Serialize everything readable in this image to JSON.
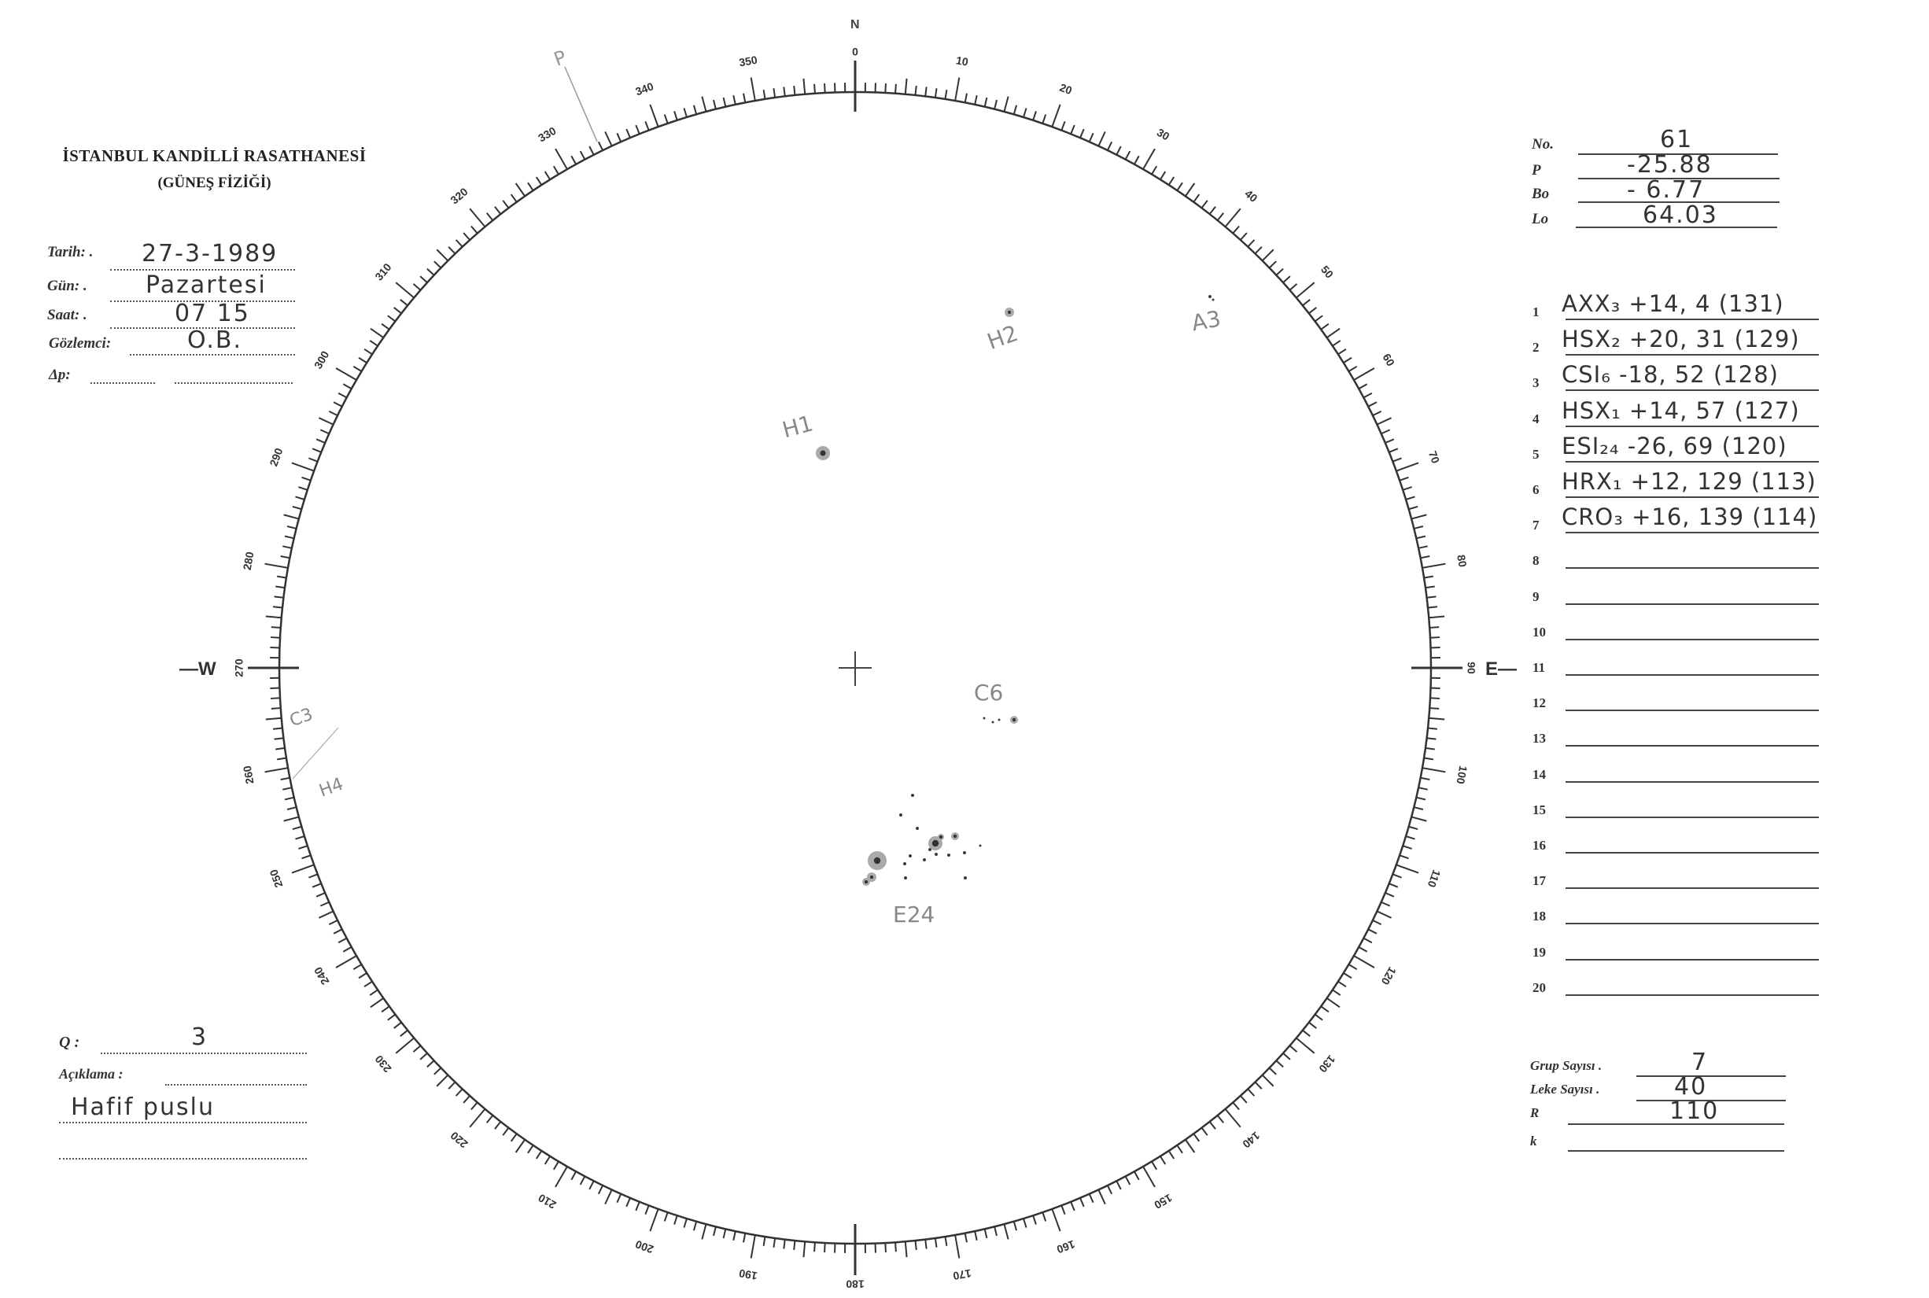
{
  "header": {
    "institution": "İSTANBUL KANDİLLİ RASATHANESİ",
    "department": "(GÜNEŞ FİZİĞİ)"
  },
  "observation": {
    "date_label": "Tarih: .",
    "date_value": "27-3-1989",
    "day_label": "Gün: .",
    "day_value": "Pazartesi",
    "time_label": "Saat: .",
    "time_value": "07 15",
    "observer_label": "Gözlemci:",
    "observer_value": "O.B.",
    "delta_p_label": "Δp:",
    "delta_p_value": ""
  },
  "parameters": {
    "no_label": "No.",
    "no_value": "61",
    "p_label": "P",
    "p_value": "-25.88",
    "bo_label": "Bo",
    "bo_value": "- 6.77",
    "lo_label": "Lo",
    "lo_value": "64.03"
  },
  "groups": [
    {
      "n": "1",
      "entry": "AXX₃ +14, 4  (131)"
    },
    {
      "n": "2",
      "entry": "HSX₂ +20, 31  (129)"
    },
    {
      "n": "3",
      "entry": "CSI₆ -18, 52  (128)"
    },
    {
      "n": "4",
      "entry": "HSX₁ +14, 57  (127)"
    },
    {
      "n": "5",
      "entry": "ESI₂₄ -26, 69  (120)"
    },
    {
      "n": "6",
      "entry": "HRX₁ +12, 129 (113)"
    },
    {
      "n": "7",
      "entry": "CRO₃ +16, 139 (114)"
    },
    {
      "n": "8",
      "entry": ""
    },
    {
      "n": "9",
      "entry": ""
    },
    {
      "n": "10",
      "entry": ""
    },
    {
      "n": "11",
      "entry": ""
    },
    {
      "n": "12",
      "entry": ""
    },
    {
      "n": "13",
      "entry": ""
    },
    {
      "n": "14",
      "entry": ""
    },
    {
      "n": "15",
      "entry": ""
    },
    {
      "n": "16",
      "entry": ""
    },
    {
      "n": "17",
      "entry": ""
    },
    {
      "n": "18",
      "entry": ""
    },
    {
      "n": "19",
      "entry": ""
    },
    {
      "n": "20",
      "entry": ""
    }
  ],
  "counts": {
    "group_count_label": "Grup Sayısı .",
    "group_count_value": "7",
    "spot_count_label": "Leke Sayısı .",
    "spot_count_value": "40",
    "r_label": "R",
    "r_value": "110",
    "k_label": "k",
    "k_value": ""
  },
  "notes": {
    "q_label": "Q :",
    "q_value": "3",
    "remark_label": "Açıklama :",
    "remark_value": "Hafif puslu"
  },
  "disk": {
    "west_label": "—W",
    "east_label": "E—",
    "north_label": "N",
    "p_axis_label": "P",
    "scale_labels": [
      "0",
      "10",
      "20",
      "30",
      "40",
      "50",
      "60",
      "70",
      "80",
      "90",
      "100",
      "110",
      "120",
      "130",
      "140",
      "150",
      "160",
      "170",
      "180",
      "190",
      "200",
      "210",
      "220",
      "230",
      "240",
      "250",
      "260",
      "270",
      "280",
      "290",
      "300",
      "310",
      "320",
      "330",
      "340",
      "350"
    ],
    "spot_labels": {
      "h1": "H1",
      "h2": "H2",
      "a3": "A3",
      "c6": "C6",
      "e24": "E24",
      "c3": "C3",
      "h4": "H4"
    }
  }
}
